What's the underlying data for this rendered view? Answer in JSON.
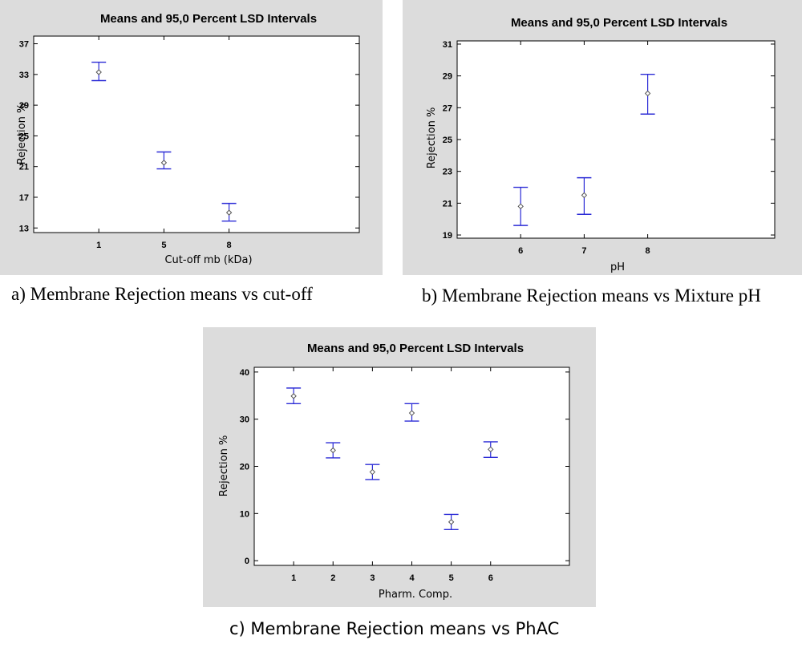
{
  "chart_data": [
    {
      "type": "scatter",
      "title": "Means and 95,0 Percent LSD Intervals",
      "xlabel": "Cut-off mb (kDa)",
      "ylabel": "Rejection %",
      "categories": [
        "1",
        "5",
        "8"
      ],
      "means": [
        33.3,
        21.5,
        15.0
      ],
      "lower": [
        32.2,
        20.7,
        13.9
      ],
      "upper": [
        34.6,
        22.9,
        16.2
      ],
      "ylim": [
        12.4,
        38.0
      ],
      "yticks": [
        13,
        17,
        21,
        25,
        29,
        33,
        37
      ],
      "grid": false,
      "caption": "a) Membrane Rejection means vs cut-off"
    },
    {
      "type": "scatter",
      "title": "Means and 95,0 Percent LSD Intervals",
      "xlabel": "pH",
      "ylabel": "Rejection %",
      "categories": [
        "6",
        "7",
        "8"
      ],
      "means": [
        20.8,
        21.5,
        27.9
      ],
      "lower": [
        19.6,
        20.3,
        26.6
      ],
      "upper": [
        22.0,
        22.6,
        29.1
      ],
      "ylim": [
        18.8,
        31.2
      ],
      "yticks": [
        19,
        21,
        23,
        25,
        27,
        29,
        31
      ],
      "grid": false,
      "caption": "b) Membrane Rejection means vs Mixture pH"
    },
    {
      "type": "scatter",
      "title": "Means and 95,0 Percent LSD Intervals",
      "xlabel": "Pharm. Comp.",
      "ylabel": "Rejection %",
      "categories": [
        "1",
        "2",
        "3",
        "4",
        "5",
        "6"
      ],
      "means": [
        34.9,
        23.4,
        18.8,
        31.3,
        8.2,
        23.6
      ],
      "lower": [
        33.3,
        21.8,
        17.2,
        29.6,
        6.6,
        21.9
      ],
      "upper": [
        36.6,
        25.0,
        20.4,
        33.3,
        9.8,
        25.2
      ],
      "ylim": [
        -1.0,
        41.0
      ],
      "yticks": [
        0,
        10,
        20,
        30,
        40
      ],
      "grid": false,
      "caption": "c) Membrane Rejection means vs PhAC"
    }
  ],
  "colors": {
    "panel_background": "#dcdcdc",
    "plot_background": "#ffffff",
    "interval": "#2b2bd6",
    "marker": "#555555"
  }
}
